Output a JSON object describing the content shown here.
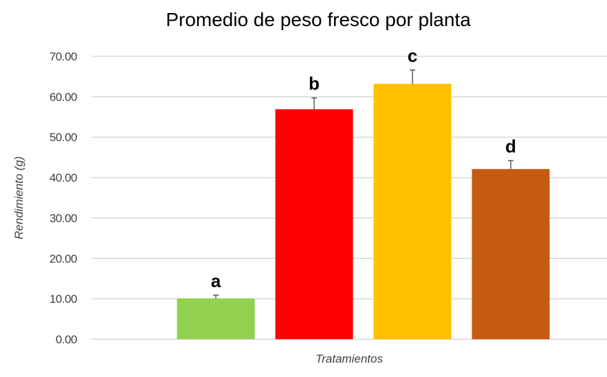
{
  "chart_data": {
    "type": "bar",
    "title": "Promedio de peso fresco por planta",
    "xlabel": "Tratamientos",
    "ylabel": "Rendimiento (g)",
    "ylim": [
      0,
      70
    ],
    "yticks": [
      "0.00",
      "10.00",
      "20.00",
      "30.00",
      "40.00",
      "50.00",
      "60.00",
      "70.00"
    ],
    "grid": true,
    "categories": [
      "",
      "",
      "",
      ""
    ],
    "values": [
      10.1,
      56.9,
      63.2,
      42.1
    ],
    "error": [
      0.8,
      2.8,
      3.4,
      2.1
    ],
    "labels": [
      "a",
      "b",
      "c",
      "d"
    ],
    "colors": [
      "#92D050",
      "#FF0000",
      "#FFC000",
      "#C55A11"
    ]
  }
}
